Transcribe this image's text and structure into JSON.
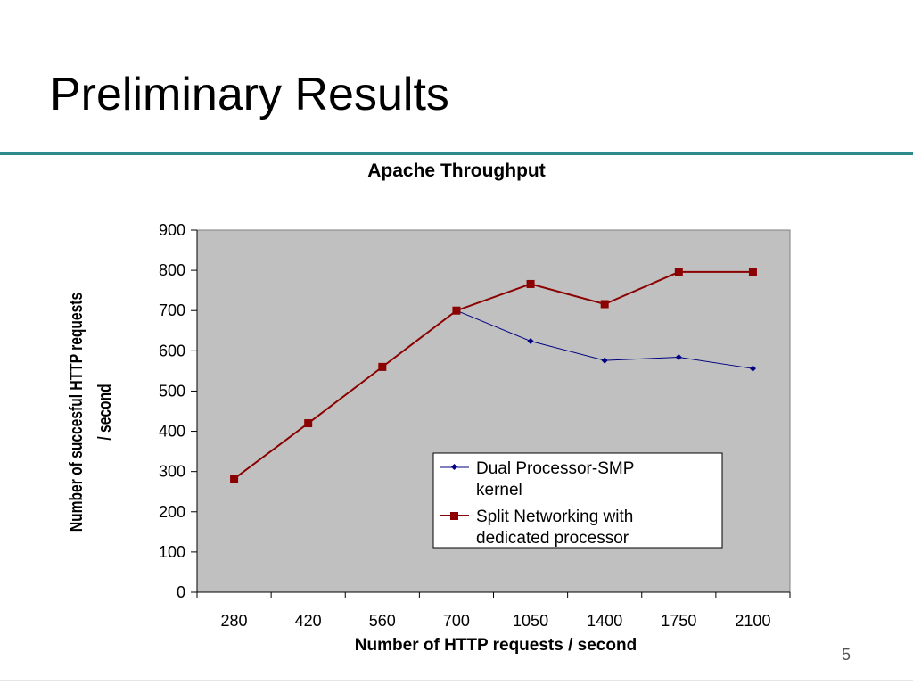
{
  "slide": {
    "title": "Preliminary Results",
    "page_number": "5"
  },
  "chart_data": {
    "type": "line",
    "title": "Apache Throughput",
    "xlabel": "Number of HTTP requests / second",
    "ylabel_lines": [
      "Number of succesful HTTP requests",
      "/ second"
    ],
    "categories": [
      "280",
      "420",
      "560",
      "700",
      "1050",
      "1400",
      "1750",
      "2100"
    ],
    "ylim": [
      0,
      900
    ],
    "yticks": [
      0,
      100,
      200,
      300,
      400,
      500,
      600,
      700,
      800,
      900
    ],
    "grid": false,
    "legend_position": "lower-right",
    "series": [
      {
        "name_lines": [
          "Dual Processor-SMP",
          "kernel"
        ],
        "color": "#000080",
        "marker": "diamond",
        "values": [
          null,
          null,
          null,
          700,
          624,
          576,
          584,
          556
        ]
      },
      {
        "name_lines": [
          "Split Networking with",
          "dedicated processor"
        ],
        "color": "#8b0000",
        "marker": "square",
        "values": [
          282,
          420,
          560,
          700,
          766,
          716,
          796,
          796
        ]
      }
    ],
    "plot_background": "#c0c0c0"
  }
}
